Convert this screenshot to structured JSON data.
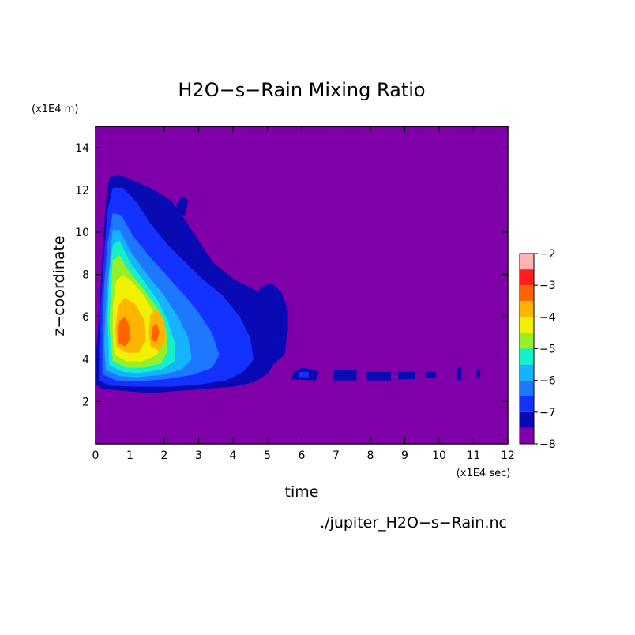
{
  "chart_data": {
    "type": "heatmap",
    "title": "H2O−s−Rain Mixing Ratio",
    "xlabel": "time",
    "ylabel": "z−coordinate",
    "x_unit": "(x1E4 sec)",
    "y_unit": "(x1E4 m)",
    "footer": "./jupiter_H2O−s−Rain.nc",
    "xlim": [
      0,
      12
    ],
    "ylim": [
      0,
      15
    ],
    "x_ticks": [
      0,
      1,
      2,
      3,
      4,
      5,
      6,
      7,
      8,
      9,
      10,
      11,
      12
    ],
    "y_ticks": [
      2,
      4,
      6,
      8,
      10,
      12,
      14
    ],
    "background_color": "#7f00a8",
    "colorbar": {
      "ticks": [
        -2,
        -3,
        -4,
        -5,
        -6,
        -7,
        -8
      ],
      "range": [
        -8,
        -2
      ],
      "levels": [
        {
          "from": -8.0,
          "to": -7.5,
          "color": "#7f00a8"
        },
        {
          "from": -7.5,
          "to": -7.0,
          "color": "#0a0ab4"
        },
        {
          "from": -7.0,
          "to": -6.5,
          "color": "#1432ff"
        },
        {
          "from": -6.5,
          "to": -6.0,
          "color": "#1e78ff"
        },
        {
          "from": -6.0,
          "to": -5.5,
          "color": "#14b4ff"
        },
        {
          "from": -5.5,
          "to": -5.0,
          "color": "#14f0c8"
        },
        {
          "from": -5.0,
          "to": -4.5,
          "color": "#96f028"
        },
        {
          "from": -4.5,
          "to": -4.0,
          "color": "#f0f000"
        },
        {
          "from": -4.0,
          "to": -3.5,
          "color": "#ffb400"
        },
        {
          "from": -3.5,
          "to": -3.0,
          "color": "#ff6400"
        },
        {
          "from": -3.0,
          "to": -2.5,
          "color": "#ff1e1e"
        },
        {
          "from": -2.5,
          "to": -2.0,
          "color": "#ffb4b4"
        }
      ]
    },
    "regions": [
      {
        "level": -7.5,
        "color": "#0a0ab4",
        "points": [
          [
            0,
            2.8
          ],
          [
            0.2,
            2.6
          ],
          [
            0.8,
            2.5
          ],
          [
            1.6,
            2.4
          ],
          [
            2.4,
            2.5
          ],
          [
            3.2,
            2.6
          ],
          [
            4.0,
            2.7
          ],
          [
            4.6,
            2.9
          ],
          [
            5.0,
            3.3
          ],
          [
            5.2,
            3.8
          ],
          [
            5.5,
            4.2
          ],
          [
            5.6,
            5.5
          ],
          [
            5.4,
            6.2
          ],
          [
            5.1,
            6.9
          ],
          [
            4.6,
            7.3
          ],
          [
            4.0,
            7.8
          ],
          [
            3.4,
            8.6
          ],
          [
            3.0,
            9.6
          ],
          [
            2.6,
            10.6
          ],
          [
            2.2,
            11.5
          ],
          [
            1.6,
            12.1
          ],
          [
            0.7,
            12.7
          ],
          [
            0.4,
            12.6
          ],
          [
            0.3,
            11.5
          ],
          [
            0.2,
            9.0
          ],
          [
            0.1,
            6.0
          ],
          [
            0,
            4.0
          ]
        ]
      },
      {
        "level": -7.5,
        "color": "#0a0ab4",
        "points": [
          [
            4.8,
            5.3
          ],
          [
            5.6,
            5.3
          ],
          [
            5.6,
            6.3
          ],
          [
            5.4,
            7.2
          ],
          [
            5.1,
            7.6
          ],
          [
            4.8,
            7.4
          ],
          [
            4.6,
            6.4
          ]
        ]
      },
      {
        "level": -7.5,
        "color": "#0a0ab4",
        "points": [
          [
            2.4,
            10.8
          ],
          [
            2.6,
            10.8
          ],
          [
            2.7,
            11.5
          ],
          [
            2.5,
            11.7
          ],
          [
            2.35,
            11.3
          ]
        ]
      },
      {
        "level": -7.0,
        "color": "#1432ff",
        "points": [
          [
            0.1,
            3.0
          ],
          [
            0.4,
            2.75
          ],
          [
            1.2,
            2.7
          ],
          [
            2.2,
            2.7
          ],
          [
            3.0,
            2.8
          ],
          [
            3.8,
            3.0
          ],
          [
            4.3,
            3.4
          ],
          [
            4.6,
            4.0
          ],
          [
            4.5,
            5.0
          ],
          [
            4.2,
            6.0
          ],
          [
            3.7,
            7.0
          ],
          [
            3.1,
            7.8
          ],
          [
            2.6,
            8.6
          ],
          [
            2.1,
            9.4
          ],
          [
            1.6,
            10.4
          ],
          [
            1.2,
            11.4
          ],
          [
            0.8,
            12.1
          ],
          [
            0.5,
            12.1
          ],
          [
            0.35,
            11.0
          ],
          [
            0.25,
            9.0
          ],
          [
            0.15,
            6.5
          ],
          [
            0.1,
            4.5
          ]
        ]
      },
      {
        "level": -6.5,
        "color": "#1e78ff",
        "points": [
          [
            0.2,
            3.3
          ],
          [
            0.6,
            3.0
          ],
          [
            1.2,
            2.95
          ],
          [
            2.0,
            3.05
          ],
          [
            2.8,
            3.25
          ],
          [
            3.4,
            3.6
          ],
          [
            3.6,
            4.2
          ],
          [
            3.4,
            5.2
          ],
          [
            3.0,
            6.2
          ],
          [
            2.6,
            7.0
          ],
          [
            2.1,
            7.9
          ],
          [
            1.6,
            8.8
          ],
          [
            1.1,
            9.8
          ],
          [
            0.75,
            10.8
          ],
          [
            0.5,
            10.9
          ],
          [
            0.35,
            9.5
          ],
          [
            0.25,
            7.5
          ],
          [
            0.2,
            5.5
          ]
        ]
      },
      {
        "level": -6.0,
        "color": "#14b4ff",
        "points": [
          [
            0.3,
            3.5
          ],
          [
            0.7,
            3.2
          ],
          [
            1.2,
            3.15
          ],
          [
            1.9,
            3.25
          ],
          [
            2.5,
            3.5
          ],
          [
            2.8,
            4.0
          ],
          [
            2.7,
            5.0
          ],
          [
            2.4,
            6.0
          ],
          [
            2.0,
            7.0
          ],
          [
            1.5,
            8.0
          ],
          [
            1.05,
            9.0
          ],
          [
            0.7,
            10.1
          ],
          [
            0.5,
            10.1
          ],
          [
            0.4,
            8.5
          ],
          [
            0.3,
            6.5
          ],
          [
            0.25,
            4.8
          ]
        ]
      },
      {
        "level": -5.5,
        "color": "#14f0c8",
        "points": [
          [
            0.4,
            3.7
          ],
          [
            0.8,
            3.4
          ],
          [
            1.3,
            3.35
          ],
          [
            1.9,
            3.5
          ],
          [
            2.3,
            3.9
          ],
          [
            2.3,
            4.8
          ],
          [
            2.1,
            5.8
          ],
          [
            1.8,
            6.8
          ],
          [
            1.4,
            7.7
          ],
          [
            1.0,
            8.6
          ],
          [
            0.7,
            9.6
          ],
          [
            0.5,
            9.4
          ],
          [
            0.4,
            8.0
          ],
          [
            0.35,
            6.0
          ]
        ]
      },
      {
        "level": -5.0,
        "color": "#96f028",
        "points": [
          [
            0.5,
            3.9
          ],
          [
            0.9,
            3.6
          ],
          [
            1.4,
            3.6
          ],
          [
            1.9,
            3.8
          ],
          [
            2.1,
            4.4
          ],
          [
            2.05,
            5.4
          ],
          [
            1.8,
            6.4
          ],
          [
            1.4,
            7.3
          ],
          [
            1.0,
            8.1
          ],
          [
            0.7,
            8.9
          ],
          [
            0.5,
            8.7
          ],
          [
            0.45,
            7.3
          ],
          [
            0.4,
            5.6
          ]
        ]
      },
      {
        "level": -4.5,
        "color": "#f0f000",
        "points": [
          [
            0.55,
            4.2
          ],
          [
            0.9,
            3.9
          ],
          [
            1.35,
            3.9
          ],
          [
            1.8,
            4.2
          ],
          [
            1.9,
            5.0
          ],
          [
            1.75,
            6.0
          ],
          [
            1.45,
            6.9
          ],
          [
            1.1,
            7.6
          ],
          [
            0.8,
            8.0
          ],
          [
            0.6,
            7.7
          ],
          [
            0.5,
            6.5
          ],
          [
            0.5,
            5.2
          ]
        ]
      },
      {
        "level": -4.0,
        "color": "#ffb400",
        "points": [
          [
            0.6,
            4.6
          ],
          [
            0.9,
            4.3
          ],
          [
            1.25,
            4.3
          ],
          [
            1.45,
            4.9
          ],
          [
            1.4,
            5.9
          ],
          [
            1.15,
            6.6
          ],
          [
            0.85,
            6.9
          ],
          [
            0.65,
            6.5
          ],
          [
            0.58,
            5.5
          ]
        ]
      },
      {
        "level": -4.0,
        "color": "#ffb400",
        "points": [
          [
            1.6,
            4.6
          ],
          [
            1.85,
            4.4
          ],
          [
            2.05,
            4.9
          ],
          [
            2.0,
            5.8
          ],
          [
            1.8,
            6.4
          ],
          [
            1.6,
            6.1
          ],
          [
            1.55,
            5.3
          ]
        ]
      },
      {
        "level": -3.5,
        "color": "#ff6400",
        "points": [
          [
            0.65,
            4.8
          ],
          [
            0.85,
            4.6
          ],
          [
            1.0,
            4.9
          ],
          [
            0.98,
            5.6
          ],
          [
            0.85,
            6.0
          ],
          [
            0.7,
            5.8
          ],
          [
            0.64,
            5.3
          ]
        ]
      },
      {
        "level": -3.5,
        "color": "#ff6400",
        "points": [
          [
            1.62,
            4.9
          ],
          [
            1.78,
            4.8
          ],
          [
            1.86,
            5.3
          ],
          [
            1.78,
            5.7
          ],
          [
            1.64,
            5.5
          ]
        ]
      },
      {
        "level": -7.5,
        "color": "#0a0ab4",
        "points": [
          [
            5.7,
            3.05
          ],
          [
            6.4,
            3.0
          ],
          [
            6.5,
            3.4
          ],
          [
            6.1,
            3.6
          ],
          [
            5.8,
            3.5
          ]
        ]
      },
      {
        "level": -7.0,
        "color": "#1432ff",
        "points": [
          [
            5.9,
            3.15
          ],
          [
            6.2,
            3.15
          ],
          [
            6.2,
            3.4
          ],
          [
            5.95,
            3.4
          ]
        ]
      },
      {
        "level": -7.5,
        "color": "#0a0ab4",
        "points": [
          [
            6.9,
            3.0
          ],
          [
            7.6,
            3.0
          ],
          [
            7.6,
            3.5
          ],
          [
            6.95,
            3.5
          ]
        ]
      },
      {
        "level": -7.5,
        "color": "#0a0ab4",
        "points": [
          [
            7.9,
            3.0
          ],
          [
            8.6,
            3.0
          ],
          [
            8.6,
            3.4
          ],
          [
            7.9,
            3.4
          ]
        ]
      },
      {
        "level": -7.5,
        "color": "#0a0ab4",
        "points": [
          [
            8.8,
            3.05
          ],
          [
            9.3,
            3.05
          ],
          [
            9.3,
            3.4
          ],
          [
            8.8,
            3.4
          ]
        ]
      },
      {
        "level": -7.5,
        "color": "#0a0ab4",
        "points": [
          [
            9.6,
            3.1
          ],
          [
            9.9,
            3.1
          ],
          [
            9.9,
            3.4
          ],
          [
            9.6,
            3.4
          ]
        ]
      },
      {
        "level": -7.5,
        "color": "#0a0ab4",
        "points": [
          [
            10.5,
            3.0
          ],
          [
            10.65,
            3.0
          ],
          [
            10.65,
            3.6
          ],
          [
            10.5,
            3.6
          ]
        ]
      },
      {
        "level": -7.5,
        "color": "#0a0ab4",
        "points": [
          [
            11.1,
            3.1
          ],
          [
            11.2,
            3.1
          ],
          [
            11.2,
            3.5
          ],
          [
            11.1,
            3.5
          ]
        ]
      }
    ]
  }
}
